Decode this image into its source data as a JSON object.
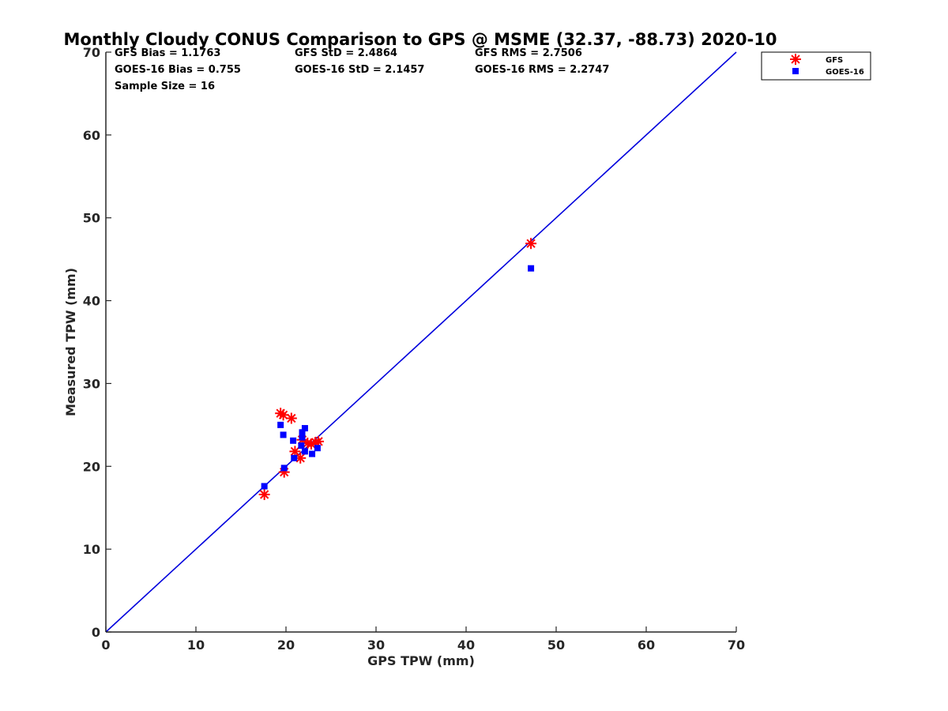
{
  "chart_data": {
    "type": "scatter",
    "title": "Monthly Cloudy CONUS Comparison to GPS @ MSME (32.37, -88.73) 2020-10",
    "xlabel": "GPS TPW (mm)",
    "ylabel": "Measured TPW (mm)",
    "xlim": [
      0,
      70
    ],
    "ylim": [
      0,
      70
    ],
    "xticks": [
      0,
      10,
      20,
      30,
      40,
      50,
      60,
      70
    ],
    "yticks": [
      0,
      10,
      20,
      30,
      40,
      50,
      60,
      70
    ],
    "grid": false,
    "legend_position": "top-right",
    "stats": [
      [
        "GFS Bias = 1.1763",
        "GFS StD = 2.4864",
        "GFS RMS = 2.7506"
      ],
      [
        "GOES-16 Bias = 0.755",
        "GOES-16 StD = 2.1457",
        "GOES-16 RMS = 2.2747"
      ],
      [
        "Sample Size = 16"
      ]
    ],
    "reference_line": {
      "x": [
        0,
        70
      ],
      "y": [
        0,
        70
      ],
      "color": "#0000dd"
    },
    "series": [
      {
        "name": "GFS",
        "marker": "asterisk",
        "color": "#ff0000",
        "points": [
          [
            17.6,
            16.6
          ],
          [
            19.4,
            26.4
          ],
          [
            19.7,
            26.2
          ],
          [
            20.6,
            25.8
          ],
          [
            19.8,
            19.3
          ],
          [
            21.0,
            21.8
          ],
          [
            21.6,
            21.0
          ],
          [
            21.8,
            23.2
          ],
          [
            22.4,
            22.8
          ],
          [
            22.8,
            22.7
          ],
          [
            23.3,
            22.9
          ],
          [
            23.6,
            23.0
          ],
          [
            47.2,
            46.9
          ]
        ]
      },
      {
        "name": "GOES-16",
        "marker": "square",
        "color": "#0000ff",
        "points": [
          [
            17.6,
            17.6
          ],
          [
            19.4,
            25.0
          ],
          [
            19.7,
            23.8
          ],
          [
            19.8,
            19.8
          ],
          [
            20.8,
            23.1
          ],
          [
            20.9,
            21.0
          ],
          [
            21.7,
            22.5
          ],
          [
            21.8,
            23.5
          ],
          [
            21.8,
            24.1
          ],
          [
            22.1,
            21.8
          ],
          [
            22.1,
            24.6
          ],
          [
            22.9,
            21.5
          ],
          [
            23.5,
            22.2
          ],
          [
            47.2,
            43.9
          ]
        ]
      }
    ]
  }
}
